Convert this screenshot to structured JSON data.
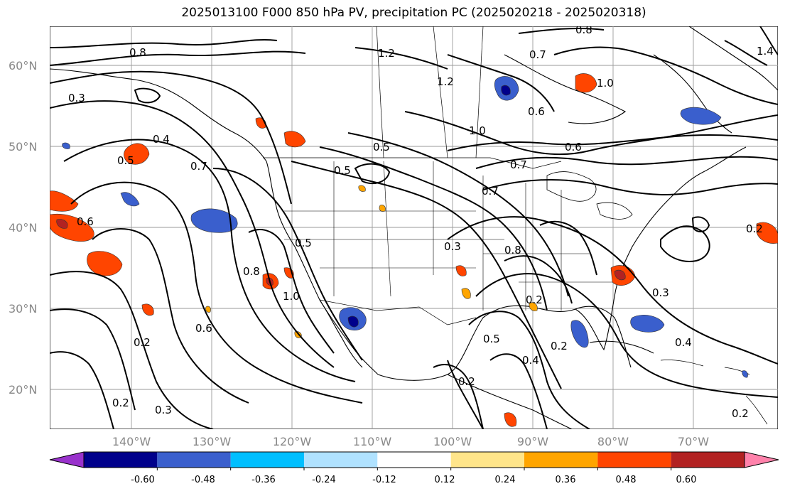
{
  "title": "2025013100 F000 850 hPa PV, precipitation PC (2025020218 - 2025020318)",
  "lat_labels": [
    "60°N",
    "50°N",
    "40°N",
    "30°N",
    "20°N"
  ],
  "lon_labels": [
    "140°W",
    "130°W",
    "120°W",
    "110°W",
    "100°W",
    "90°W",
    "80°W",
    "70°W"
  ],
  "contour_labels": [
    "0.8",
    "1.2",
    "0.3",
    "0.4",
    "0.5",
    "0.7",
    "0.6",
    "1.0",
    "0.2",
    "0.8",
    "0.6",
    "0.3",
    "0.5",
    "0.7",
    "0.8",
    "1.0",
    "0.6",
    "0.2",
    "0.3",
    "0.4",
    "0.2",
    "0.2",
    "0.3",
    "0.4",
    "0.2",
    "1.2",
    "1.0",
    "0.6",
    "0.7",
    "0.7",
    "1.4",
    "0.8",
    "0.5",
    "0.5",
    "0.2",
    "0.2",
    "0.5"
  ],
  "colorbar": {
    "labels": [
      "-0.60",
      "-0.48",
      "-0.36",
      "-0.24",
      "-0.12",
      "0.12",
      "0.24",
      "0.36",
      "0.48",
      "0.60"
    ],
    "colors": [
      "#9932cc",
      "#00008b",
      "#3a5fcd",
      "#00bfff",
      "#b0e2ff",
      "#ffffff",
      "#ffe58a",
      "#ffa500",
      "#ff4500",
      "#b22222",
      "#ff82ab"
    ]
  },
  "colors": {
    "land_outline": "#000000",
    "grid": "#9a9a9a",
    "axis_label": "#888888"
  }
}
